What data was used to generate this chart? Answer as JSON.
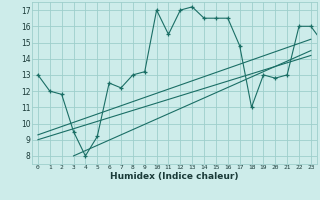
{
  "xlabel": "Humidex (Indice chaleur)",
  "ylabel": "",
  "bg_color": "#cdecea",
  "grid_color": "#9ecfcb",
  "line_color": "#1a6e65",
  "marker_color": "#1a6e65",
  "xlim": [
    -0.5,
    23.5
  ],
  "ylim": [
    7.5,
    17.5
  ],
  "yticks": [
    8,
    9,
    10,
    11,
    12,
    13,
    14,
    15,
    16,
    17
  ],
  "xticks": [
    0,
    1,
    2,
    3,
    4,
    5,
    6,
    7,
    8,
    9,
    10,
    11,
    12,
    13,
    14,
    15,
    16,
    17,
    18,
    19,
    20,
    21,
    22,
    23
  ],
  "main_series": [
    13,
    12,
    11.8,
    9.5,
    8,
    9.2,
    12.5,
    12.2,
    13,
    13.2,
    17,
    15.5,
    17,
    17.2,
    16.5,
    16.5,
    16.5,
    14.8,
    11,
    13,
    12.8,
    13,
    16,
    16,
    15
  ],
  "line1_x": [
    0,
    23
  ],
  "line1_y": [
    9.0,
    14.2
  ],
  "line2_x": [
    0,
    23
  ],
  "line2_y": [
    9.3,
    15.2
  ],
  "line3_x": [
    3,
    23
  ],
  "line3_y": [
    8.0,
    14.5
  ]
}
